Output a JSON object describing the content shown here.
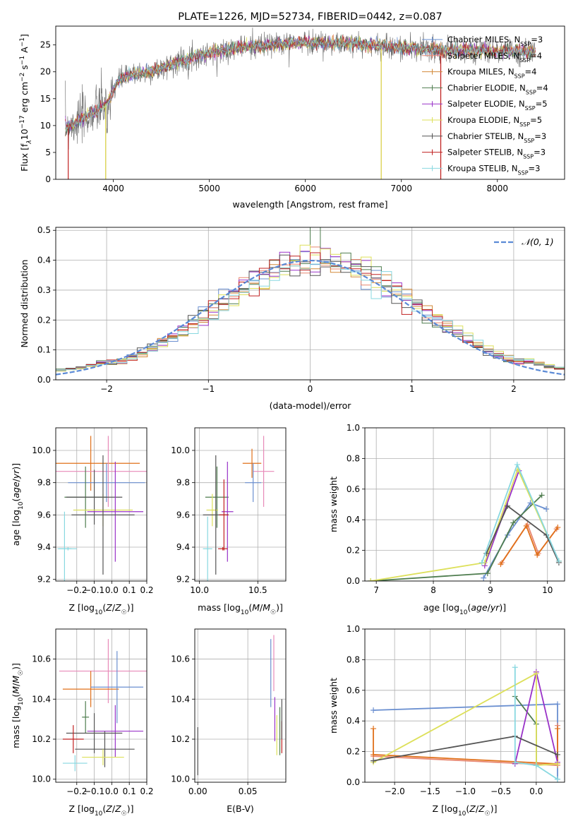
{
  "colors": {
    "Chabrier MILES": "#6a8fd0",
    "Salpeter MILES": "#e8866f",
    "Kroupa MILES": "#d28a3a",
    "Chabrier ELODIE": "#4f7d4f",
    "Salpeter ELODIE": "#9932c8",
    "Kroupa ELODIE": "#dde05a",
    "Chabrier STELIB": "#555555",
    "Salpeter STELIB": "#c02020",
    "Kroupa STELIB": "#88d8e0",
    "extra_pink": "#e88ab8",
    "extra_orange": "#e0701a",
    "grid": "#b0b0b0",
    "gauss": "#5b8ad6"
  },
  "chart_data": [
    {
      "id": "spectrum",
      "type": "line",
      "title": "PLATE=1226, MJD=52734, FIBERID=0442, z=0.087",
      "xlabel": "wavelength [Angstrom, rest frame]",
      "ylabel_parts": [
        "Flux [f",
        "λ",
        "10",
        "−17",
        " erg cm",
        "−2",
        " s",
        "−1",
        " A",
        "−1",
        "]"
      ],
      "xlim": [
        3400,
        8700
      ],
      "ylim": [
        0,
        28.5
      ],
      "xticks": [
        4000,
        5000,
        6000,
        7000,
        8000
      ],
      "yticks": [
        0,
        5,
        10,
        15,
        20,
        25
      ],
      "grid": false,
      "legend_position": "top-right",
      "continuum": [
        [
          3500,
          9.8
        ],
        [
          3600,
          10.5
        ],
        [
          3800,
          12.5
        ],
        [
          3950,
          14.5
        ],
        [
          4050,
          18.5
        ],
        [
          4200,
          19.5
        ],
        [
          4400,
          20.0
        ],
        [
          4700,
          22.0
        ],
        [
          5000,
          23.5
        ],
        [
          5300,
          24.5
        ],
        [
          5600,
          25.0
        ],
        [
          6000,
          25.5
        ],
        [
          6500,
          25.2
        ],
        [
          7000,
          24.5
        ],
        [
          7500,
          24.0
        ],
        [
          8000,
          23.8
        ],
        [
          8400,
          23.8
        ]
      ],
      "data_range": [
        3500,
        8400
      ],
      "series": [
        {
          "label": "Chabrier MILES",
          "n": "3",
          "drops": []
        },
        {
          "label": "Salpeter MILES",
          "n": "4",
          "drops": [
            7410
          ]
        },
        {
          "label": "Kroupa MILES",
          "n": "4",
          "drops": [
            3920,
            6790
          ]
        },
        {
          "label": "Chabrier ELODIE",
          "n": "4",
          "drops": []
        },
        {
          "label": "Salpeter ELODIE",
          "n": "5",
          "drops": []
        },
        {
          "label": "Kroupa ELODIE",
          "n": "5",
          "drops": [
            3920,
            6790
          ]
        },
        {
          "label": "Chabrier STELIB",
          "n": "3",
          "drops": []
        },
        {
          "label": "Salpeter STELIB",
          "n": "3",
          "drops": [
            3530,
            7410
          ]
        },
        {
          "label": "Kroupa STELIB",
          "n": "3",
          "drops": []
        }
      ]
    },
    {
      "id": "residuals",
      "type": "line",
      "xlabel": "(data-model)/error",
      "ylabel": "Normed distribution",
      "xlim": [
        -2.5,
        2.5
      ],
      "ylim": [
        0,
        0.51
      ],
      "xticks": [
        -2,
        -1,
        0,
        1,
        2
      ],
      "yticks": [
        0.0,
        0.1,
        0.2,
        0.3,
        0.4,
        0.5
      ],
      "grid": true,
      "legend_position": "top-right",
      "legend": "𝒩(0, 1)",
      "gaussian": {
        "mean": 0,
        "sigma": 1
      },
      "bin_width": 0.1,
      "histogram_colors": [
        "#6a8fd0",
        "#e8866f",
        "#d28a3a",
        "#4f7d4f",
        "#9932c8",
        "#dde05a",
        "#555555",
        "#c02020",
        "#88d8e0"
      ]
    },
    {
      "id": "age-vs-z",
      "type": "scatter",
      "xlabel": "Z [log",
      "xlabel_math": "10",
      "xlabel_tail": "(Z/Z",
      "ylabel": "age  [log10(age/yr)]",
      "xlim": [
        -0.32,
        0.2
      ],
      "ylim": [
        9.19,
        10.14
      ],
      "xticks": [
        -0.2,
        -0.1,
        0.0,
        0.1,
        0.2
      ],
      "yticks": [
        9.2,
        9.4,
        9.6,
        9.8,
        10.0
      ],
      "grid": true,
      "points": [
        {
          "x": -0.12,
          "y": 9.92,
          "xerr": 0.28,
          "yerr": 0.17,
          "color": "#e0701a"
        },
        {
          "x": -0.02,
          "y": 9.87,
          "xerr": 0.3,
          "yerr": 0.22,
          "color": "#e88ab8"
        },
        {
          "x": -0.03,
          "y": 9.8,
          "xerr": 0.22,
          "yerr": 0.12,
          "color": "#6a8fd0"
        },
        {
          "x": -0.15,
          "y": 9.71,
          "xerr": 0.12,
          "yerr": 0.19,
          "color": "#4f7d4f"
        },
        {
          "x": -0.1,
          "y": 9.71,
          "xerr": 0.16,
          "yerr": 0.17,
          "color": "#555555"
        },
        {
          "x": -0.05,
          "y": 9.63,
          "xerr": 0.17,
          "yerr": 0.1,
          "color": "#dde05a"
        },
        {
          "x": 0.02,
          "y": 9.62,
          "xerr": 0.16,
          "yerr": 0.31,
          "color": "#9932c8"
        },
        {
          "x": -0.05,
          "y": 9.6,
          "xerr": 0.18,
          "yerr": 0.37,
          "color": "#555555"
        },
        {
          "x": -0.27,
          "y": 9.39,
          "xerr": 0.04,
          "yerr": 0.23,
          "color": "#88d8e0"
        },
        {
          "x": -0.25,
          "y": 9.39,
          "xerr": 0.05,
          "yerr": 0.01,
          "color": "#88d8e0"
        }
      ]
    },
    {
      "id": "age-vs-mass",
      "type": "scatter",
      "xlabel": "mass [log10(M/M☉)]",
      "ylabel": "",
      "xlim": [
        9.96,
        10.74
      ],
      "ylim": [
        9.19,
        10.14
      ],
      "xticks": [
        10.0,
        10.5
      ],
      "yticks": [
        9.2,
        9.4,
        9.6,
        9.8,
        10.0
      ],
      "grid": true,
      "points": [
        {
          "x": 10.45,
          "y": 9.92,
          "xerr": 0.08,
          "yerr": 0.09,
          "color": "#e0701a"
        },
        {
          "x": 10.55,
          "y": 9.87,
          "xerr": 0.09,
          "yerr": 0.22,
          "color": "#e88ab8"
        },
        {
          "x": 10.46,
          "y": 9.8,
          "xerr": 0.07,
          "yerr": 0.12,
          "color": "#6a8fd0"
        },
        {
          "x": 10.15,
          "y": 9.71,
          "xerr": 0.1,
          "yerr": 0.19,
          "color": "#4f7d4f"
        },
        {
          "x": 10.11,
          "y": 9.63,
          "xerr": 0.05,
          "yerr": 0.1,
          "color": "#dde05a"
        },
        {
          "x": 10.24,
          "y": 9.62,
          "xerr": 0.05,
          "yerr": 0.31,
          "color": "#9932c8"
        },
        {
          "x": 10.14,
          "y": 9.6,
          "xerr": 0.11,
          "yerr": 0.37,
          "color": "#555555"
        },
        {
          "x": 10.21,
          "y": 9.6,
          "xerr": 0.04,
          "yerr": 0.22,
          "color": "#c02020"
        },
        {
          "x": 10.07,
          "y": 9.39,
          "xerr": 0.04,
          "yerr": 0.2,
          "color": "#88d8e0"
        },
        {
          "x": 10.2,
          "y": 9.39,
          "xerr": 0.04,
          "yerr": 0.01,
          "color": "#c02020"
        }
      ]
    },
    {
      "id": "massweight-vs-age",
      "type": "line",
      "xlabel": "age  [log10(age/yr)]",
      "ylabel": "mass weight",
      "xlim": [
        6.8,
        10.3
      ],
      "ylim": [
        0,
        1.0
      ],
      "xticks": [
        7,
        8,
        9,
        10
      ],
      "yticks": [
        0.0,
        0.2,
        0.4,
        0.6,
        0.8,
        1.0
      ],
      "grid": true,
      "series": [
        {
          "color": "#6a8fd0",
          "points": [
            [
              8.88,
              0.02
            ],
            [
              9.3,
              0.3
            ],
            [
              9.7,
              0.51
            ],
            [
              9.98,
              0.47
            ]
          ]
        },
        {
          "color": "#e8866f",
          "points": [
            [
              9.2,
              0.12
            ],
            [
              9.65,
              0.37
            ],
            [
              9.84,
              0.18
            ],
            [
              10.16,
              0.34
            ]
          ]
        },
        {
          "color": "#e0701a",
          "points": [
            [
              9.18,
              0.11
            ],
            [
              9.63,
              0.36
            ],
            [
              9.82,
              0.17
            ],
            [
              10.18,
              0.35
            ]
          ]
        },
        {
          "color": "#4f7d4f",
          "points": [
            [
              6.9,
              0.0
            ],
            [
              8.95,
              0.05
            ],
            [
              9.4,
              0.38
            ],
            [
              9.9,
              0.56
            ]
          ]
        },
        {
          "color": "#9932c8",
          "points": [
            [
              8.9,
              0.1
            ],
            [
              9.5,
              0.72
            ],
            [
              10.2,
              0.13
            ]
          ]
        },
        {
          "color": "#dde05a",
          "points": [
            [
              6.9,
              0.0
            ],
            [
              8.9,
              0.12
            ],
            [
              9.48,
              0.73
            ],
            [
              10.2,
              0.13
            ]
          ]
        },
        {
          "color": "#555555",
          "points": [
            [
              8.93,
              0.18
            ],
            [
              9.3,
              0.49
            ],
            [
              9.98,
              0.3
            ],
            [
              10.2,
              0.12
            ]
          ]
        },
        {
          "color": "#88d8e0",
          "points": [
            [
              8.85,
              0.12
            ],
            [
              9.47,
              0.76
            ],
            [
              10.2,
              0.13
            ]
          ]
        }
      ]
    },
    {
      "id": "mass-vs-z",
      "type": "scatter",
      "xlabel": "Z [log10(Z/Z☉)]",
      "ylabel": "mass [log10(M/M☉)]",
      "xlim": [
        -0.32,
        0.2
      ],
      "ylim": [
        9.985,
        10.75
      ],
      "xticks": [
        -0.2,
        -0.1,
        0.0,
        0.1,
        0.2
      ],
      "yticks": [
        10.0,
        10.2,
        10.4,
        10.6
      ],
      "grid": true,
      "points": [
        {
          "x": -0.02,
          "y": 10.54,
          "xerr": 0.28,
          "yerr": 0.16,
          "color": "#e88ab8"
        },
        {
          "x": -0.12,
          "y": 10.45,
          "xerr": 0.16,
          "yerr": 0.09,
          "color": "#e0701a"
        },
        {
          "x": 0.03,
          "y": 10.46,
          "xerr": 0.15,
          "yerr": 0.18,
          "color": "#6a8fd0"
        },
        {
          "x": -0.15,
          "y": 10.31,
          "xerr": 0.02,
          "yerr": 0.08,
          "color": "#4f7d4f"
        },
        {
          "x": 0.02,
          "y": 10.24,
          "xerr": 0.16,
          "yerr": 0.13,
          "color": "#9932c8"
        },
        {
          "x": -0.1,
          "y": 10.23,
          "xerr": 0.16,
          "yerr": 0.1,
          "color": "#555555"
        },
        {
          "x": -0.04,
          "y": 10.15,
          "xerr": 0.17,
          "yerr": 0.09,
          "color": "#555555"
        },
        {
          "x": -0.22,
          "y": 10.2,
          "xerr": 0.06,
          "yerr": 0.07,
          "color": "#c02020"
        },
        {
          "x": -0.05,
          "y": 10.11,
          "xerr": 0.12,
          "yerr": 0.04,
          "color": "#dde05a"
        },
        {
          "x": -0.21,
          "y": 10.08,
          "xerr": 0.07,
          "yerr": 0.04,
          "color": "#88d8e0"
        }
      ]
    },
    {
      "id": "mass-vs-ebv",
      "type": "scatter",
      "xlabel": "E(B-V)",
      "ylabel": "",
      "xlim": [
        -0.003,
        0.088
      ],
      "ylim": [
        9.985,
        10.75
      ],
      "xticks": [
        0.0,
        0.05
      ],
      "yticks": [
        10.0,
        10.2,
        10.4,
        10.6
      ],
      "grid": true,
      "points": [
        {
          "x": 0.0,
          "y": 10.14,
          "xerr": 0,
          "yerr": 0.12,
          "color": "#555555"
        },
        {
          "x": 0.073,
          "y": 10.53,
          "xerr": 0,
          "yerr": 0.17,
          "color": "#6a8fd0"
        },
        {
          "x": 0.076,
          "y": 10.58,
          "xerr": 0,
          "yerr": 0.14,
          "color": "#e88ab8"
        },
        {
          "x": 0.077,
          "y": 10.3,
          "xerr": 0,
          "yerr": 0.11,
          "color": "#9932c8"
        },
        {
          "x": 0.079,
          "y": 10.22,
          "xerr": 0,
          "yerr": 0.1,
          "color": "#dde05a"
        },
        {
          "x": 0.082,
          "y": 10.24,
          "xerr": 0,
          "yerr": 0.12,
          "color": "#4f7d4f"
        },
        {
          "x": 0.084,
          "y": 10.21,
          "xerr": 0,
          "yerr": 0.08,
          "color": "#c02020"
        },
        {
          "x": 0.084,
          "y": 10.3,
          "xerr": 0,
          "yerr": 0.1,
          "color": "#555555"
        }
      ]
    },
    {
      "id": "massweight-vs-z",
      "type": "line",
      "xlabel": "Z [log10(Z/Z☉)]",
      "ylabel": "mass weight",
      "xlim": [
        -2.42,
        0.4
      ],
      "ylim": [
        0,
        1.0
      ],
      "xticks": [
        -2.0,
        -1.5,
        -1.0,
        -0.5,
        0.0
      ],
      "yticks": [
        0.0,
        0.2,
        0.4,
        0.6,
        0.8,
        1.0
      ],
      "grid": true,
      "series": [
        {
          "color": "#6a8fd0",
          "points": [
            [
              -2.3,
              0.47
            ],
            [
              0.3,
              0.51
            ],
            [
              0.3,
              0.02
            ]
          ]
        },
        {
          "color": "#e8866f",
          "points": [
            [
              -2.3,
              0.17
            ],
            [
              0.3,
              0.11
            ],
            [
              0.3,
              0.37
            ]
          ]
        },
        {
          "color": "#e0701a",
          "points": [
            [
              -2.3,
              0.35
            ],
            [
              -2.3,
              0.18
            ],
            [
              0.3,
              0.12
            ],
            [
              0.3,
              0.35
            ]
          ]
        },
        {
          "color": "#4f7d4f",
          "points": [
            [
              -0.3,
              0.56
            ],
            [
              0.0,
              0.38
            ],
            [
              0.0,
              0.11
            ]
          ]
        },
        {
          "color": "#9932c8",
          "points": [
            [
              -0.3,
              0.12
            ],
            [
              0.0,
              0.72
            ],
            [
              0.3,
              0.13
            ]
          ]
        },
        {
          "color": "#dde05a",
          "points": [
            [
              -2.3,
              0.13
            ],
            [
              0.0,
              0.71
            ],
            [
              0.0,
              0.11
            ],
            [
              0.3,
              0.12
            ]
          ]
        },
        {
          "color": "#555555",
          "points": [
            [
              -2.3,
              0.14
            ],
            [
              -0.3,
              0.3
            ],
            [
              0.3,
              0.18
            ]
          ]
        },
        {
          "color": "#88d8e0",
          "points": [
            [
              -0.3,
              0.75
            ],
            [
              -0.3,
              0.13
            ],
            [
              0.0,
              0.11
            ],
            [
              0.3,
              0.02
            ]
          ]
        }
      ]
    }
  ]
}
